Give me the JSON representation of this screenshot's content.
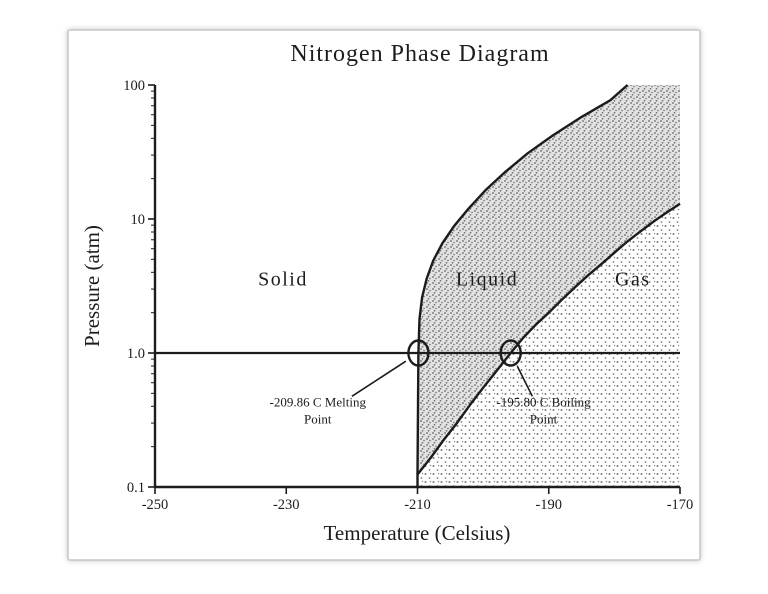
{
  "figure": {
    "background_color": "#ffffff",
    "frame_border_color": "#c6c6c6"
  },
  "chart_data": {
    "type": "line",
    "title": "Nitrogen Phase Diagram",
    "xlabel": "Temperature (Celsius)",
    "ylabel": "Pressure (atm)",
    "grid": false,
    "x_axis": {
      "scale": "linear",
      "min": -250,
      "max": -170,
      "ticks": [
        -250,
        -230,
        -210,
        -190,
        -170
      ],
      "tick_labels": [
        "-250",
        "-230",
        "-210",
        "-190",
        "-170"
      ]
    },
    "y_axis": {
      "scale": "log",
      "min": 0.1,
      "max": 100,
      "ticks": [
        100,
        10,
        1.0,
        0.1
      ],
      "tick_labels": [
        "100",
        "10",
        "1.0",
        "0.1"
      ],
      "minor_tick_decades": [
        0.1,
        1,
        10
      ]
    },
    "regions": [
      {
        "label": "Solid",
        "label_at": [
          -230.5,
          3.2
        ]
      },
      {
        "label": "Liquid",
        "label_at": [
          -199.4,
          3.2
        ]
      },
      {
        "label": "Gas",
        "label_at": [
          -177.2,
          3.2
        ]
      }
    ],
    "reference_line": {
      "pressure": 1.0
    },
    "triple_point": {
      "T": -210.0,
      "P": 0.124
    },
    "points": [
      {
        "name": "melting-point",
        "T": -209.86,
        "P": 1.0
      },
      {
        "name": "boiling-point",
        "T": -195.8,
        "P": 1.0
      }
    ],
    "curves": {
      "melting": [
        [
          -210,
          0.124
        ],
        [
          -209.86,
          1.0
        ],
        [
          -209.7,
          1.8
        ],
        [
          -209.3,
          2.6
        ],
        [
          -208.6,
          3.6
        ],
        [
          -207.6,
          4.9
        ],
        [
          -206.2,
          6.6
        ],
        [
          -204.4,
          8.9
        ],
        [
          -202.2,
          12
        ],
        [
          -199.6,
          16.5
        ],
        [
          -196.6,
          22.5
        ],
        [
          -193.2,
          31
        ],
        [
          -189.4,
          42
        ],
        [
          -185.2,
          57
        ],
        [
          -180.6,
          77
        ],
        [
          -178,
          100
        ]
      ],
      "vaporization": [
        [
          -210,
          0.124
        ],
        [
          -208,
          0.165
        ],
        [
          -206,
          0.225
        ],
        [
          -204,
          0.3
        ],
        [
          -202,
          0.41
        ],
        [
          -200,
          0.55
        ],
        [
          -198,
          0.73
        ],
        [
          -195.8,
          1.0
        ],
        [
          -194,
          1.28
        ],
        [
          -192,
          1.62
        ],
        [
          -190,
          2.0
        ],
        [
          -188,
          2.5
        ],
        [
          -186,
          3.1
        ],
        [
          -184,
          3.8
        ],
        [
          -182,
          4.6
        ],
        [
          -180,
          5.6
        ],
        [
          -178,
          6.8
        ],
        [
          -176,
          8.1
        ],
        [
          -174,
          9.6
        ],
        [
          -172,
          11.2
        ],
        [
          -170,
          13.0
        ]
      ],
      "sublimation": [
        [
          -210,
          0.124
        ],
        [
          -210,
          0.1
        ]
      ]
    },
    "annotations": [
      {
        "line1": "-209.86 C Melting",
        "line2": "Point",
        "text_at": [
          -225.2,
          0.36
        ],
        "leader_from": [
          -220.0,
          0.475
        ],
        "target": [
          -209.86,
          1.0
        ]
      },
      {
        "line1": "-195.80 C Boiling",
        "line2": "Point",
        "text_at": [
          -190.8,
          0.36
        ],
        "leader_from": [
          -192.5,
          0.475
        ],
        "target": [
          -195.8,
          1.0
        ]
      }
    ]
  }
}
